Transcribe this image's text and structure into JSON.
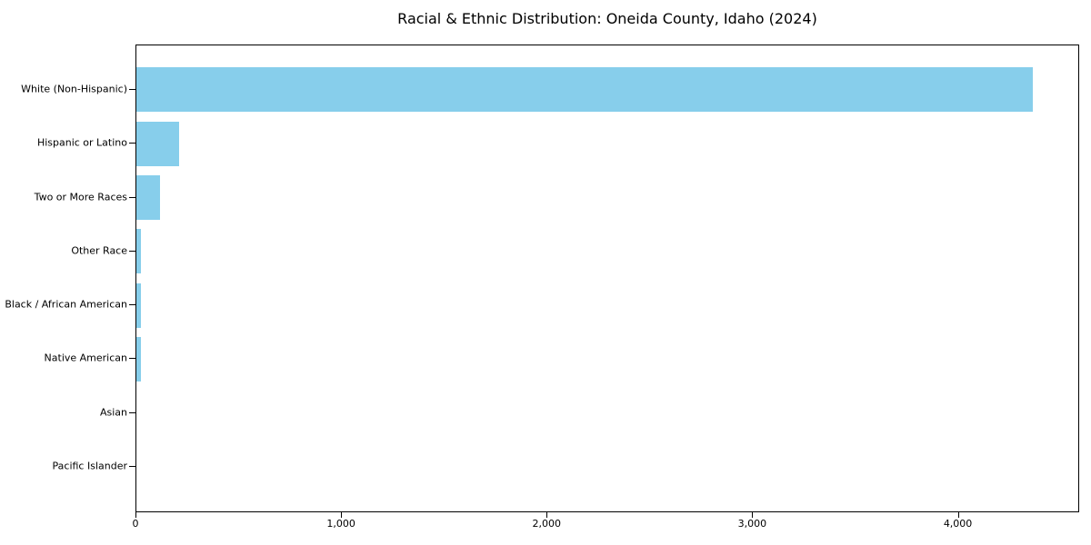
{
  "title": "Racial & Ethnic Distribution: Oneida County, Idaho (2024)",
  "colors": {
    "bar": "#87CEEB",
    "axis": "#000000",
    "text": "#000000",
    "background": "#FFFFFF"
  },
  "chart_data": {
    "type": "bar",
    "orientation": "horizontal",
    "title": "Racial & Ethnic Distribution: Oneida County, Idaho (2024)",
    "categories": [
      "White (Non-Hispanic)",
      "Hispanic or Latino",
      "Two or More Races",
      "Other Race",
      "Black / African American",
      "Native American",
      "Asian",
      "Pacific Islander"
    ],
    "values": [
      4370,
      210,
      115,
      24,
      23,
      22,
      0,
      0
    ],
    "xlabel": "",
    "ylabel": "",
    "xlim": [
      0,
      4590
    ],
    "x_ticks": [
      0,
      1000,
      2000,
      3000,
      4000
    ],
    "x_tick_labels": [
      "0",
      "1,000",
      "2,000",
      "3,000",
      "4,000"
    ],
    "bar_color": "#87CEEB",
    "grid": false,
    "legend": false,
    "sorted": "descending"
  }
}
